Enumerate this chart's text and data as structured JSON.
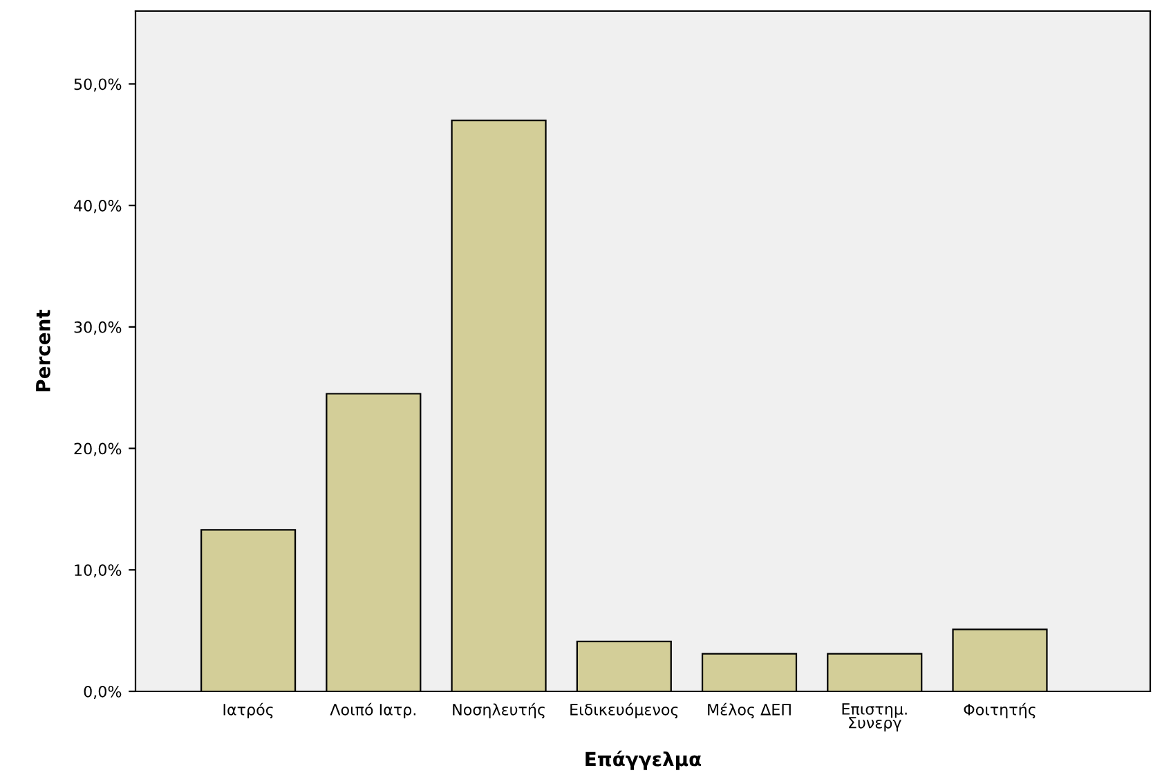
{
  "chart_data": {
    "type": "bar",
    "xlabel": "Επάγγελμα",
    "ylabel": "Percent",
    "categories": [
      "Ιατρός",
      "Λοιπό Ιατρ.",
      "Νοσηλευτής",
      "Ειδικευόμενος",
      "Μέλος ΔΕΠ",
      "Επιστημ.\nΣυνεργ",
      "Φοιτητής"
    ],
    "values": [
      13.3,
      24.5,
      47.0,
      4.1,
      3.1,
      3.1,
      5.1
    ],
    "color": "#d3ce98",
    "ylim": [
      0,
      56
    ],
    "yticks": [
      {
        "value": 0,
        "label": "0,0%"
      },
      {
        "value": 10,
        "label": "10,0%"
      },
      {
        "value": 20,
        "label": "20,0%"
      },
      {
        "value": 30,
        "label": "30,0%"
      },
      {
        "value": 40,
        "label": "40,0%"
      },
      {
        "value": 50,
        "label": "50,0%"
      }
    ],
    "grid": false,
    "legend": false
  }
}
